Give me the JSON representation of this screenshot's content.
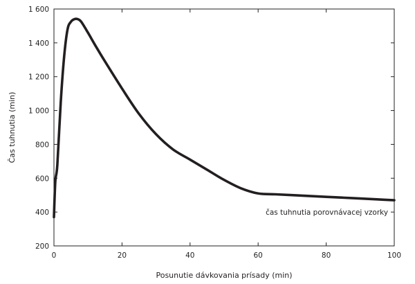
{
  "chart_data": {
    "type": "line",
    "title": "",
    "xlabel": "Posunutie dávkovania prísady (min)",
    "ylabel": "Čas tuhnutia (min)",
    "xlim": [
      0,
      100
    ],
    "ylim": [
      200,
      1600
    ],
    "xticks": [
      0,
      20,
      40,
      60,
      80,
      100
    ],
    "yticks": [
      200,
      400,
      600,
      800,
      1000,
      1200,
      1400,
      1600
    ],
    "xtick_labels": [
      "0",
      "20",
      "40",
      "60",
      "80",
      "100"
    ],
    "ytick_labels": [
      "200",
      "400",
      "600",
      "800",
      "1 000",
      "1 200",
      "1 400",
      "1 600"
    ],
    "grid": false,
    "annotation": "čas tuhnutia porovnávacej vzorky",
    "annotation_anchor": {
      "x": 99,
      "y": 400
    },
    "series": [
      {
        "color": "#231f20",
        "x": [
          0,
          0.4,
          1,
          2,
          3,
          4,
          5,
          6,
          7,
          8,
          10,
          12,
          15,
          20,
          25,
          30,
          35,
          40,
          45,
          50,
          55,
          60,
          65,
          70,
          75,
          80,
          85,
          90,
          95,
          100
        ],
        "y": [
          370,
          580,
          680,
          1050,
          1320,
          1480,
          1525,
          1540,
          1540,
          1525,
          1460,
          1390,
          1290,
          1130,
          980,
          860,
          770,
          710,
          650,
          590,
          540,
          510,
          505,
          500,
          495,
          490,
          485,
          480,
          475,
          470
        ]
      }
    ]
  }
}
